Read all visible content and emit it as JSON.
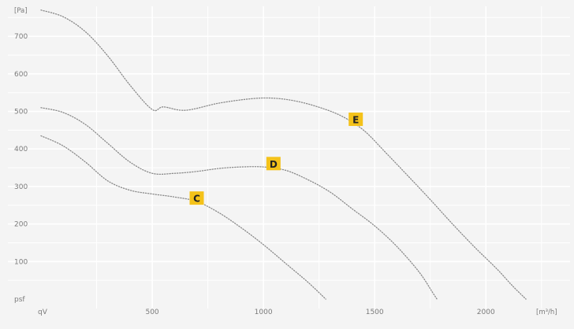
{
  "chart_data": {
    "type": "line",
    "title": "",
    "xlabel": "[m³/h]",
    "ylabel": "[Pa]",
    "x_origin_label": "qV",
    "y_origin_label": "psf",
    "xlim": [
      0,
      2350
    ],
    "ylim": [
      0,
      780
    ],
    "x_ticks": [
      500,
      1000,
      1500,
      2000
    ],
    "y_ticks": [
      100,
      200,
      300,
      400,
      500,
      600,
      700
    ],
    "grid": true,
    "legend": "none",
    "colors": {
      "background": "#f4f4f4",
      "gridline": "#ffffff",
      "curve": "#8a8a8a",
      "label_badge": "#f4c21a"
    },
    "series": [
      {
        "name": "E",
        "label_at": [
          1415,
          478
        ],
        "points": [
          [
            0,
            770
          ],
          [
            100,
            752
          ],
          [
            200,
            712
          ],
          [
            300,
            648
          ],
          [
            400,
            570
          ],
          [
            500,
            505
          ],
          [
            550,
            512
          ],
          [
            650,
            503
          ],
          [
            800,
            522
          ],
          [
            950,
            534
          ],
          [
            1050,
            535
          ],
          [
            1150,
            527
          ],
          [
            1250,
            511
          ],
          [
            1350,
            488
          ],
          [
            1450,
            450
          ],
          [
            1550,
            390
          ],
          [
            1650,
            328
          ],
          [
            1750,
            265
          ],
          [
            1850,
            200
          ],
          [
            1950,
            138
          ],
          [
            2050,
            80
          ],
          [
            2120,
            35
          ],
          [
            2180,
            0
          ]
        ]
      },
      {
        "name": "D",
        "label_at": [
          1045,
          360
        ],
        "points": [
          [
            0,
            510
          ],
          [
            100,
            497
          ],
          [
            200,
            465
          ],
          [
            300,
            415
          ],
          [
            400,
            365
          ],
          [
            500,
            335
          ],
          [
            600,
            335
          ],
          [
            700,
            340
          ],
          [
            800,
            348
          ],
          [
            900,
            352
          ],
          [
            1000,
            352
          ],
          [
            1100,
            343
          ],
          [
            1200,
            318
          ],
          [
            1300,
            285
          ],
          [
            1400,
            240
          ],
          [
            1500,
            195
          ],
          [
            1600,
            140
          ],
          [
            1700,
            72
          ],
          [
            1760,
            18
          ],
          [
            1780,
            0
          ]
        ]
      },
      {
        "name": "C",
        "label_at": [
          700,
          268
        ],
        "points": [
          [
            0,
            435
          ],
          [
            100,
            408
          ],
          [
            200,
            365
          ],
          [
            300,
            315
          ],
          [
            400,
            290
          ],
          [
            500,
            280
          ],
          [
            600,
            272
          ],
          [
            700,
            260
          ],
          [
            800,
            230
          ],
          [
            900,
            190
          ],
          [
            1000,
            145
          ],
          [
            1100,
            95
          ],
          [
            1200,
            45
          ],
          [
            1280,
            0
          ]
        ]
      }
    ]
  }
}
